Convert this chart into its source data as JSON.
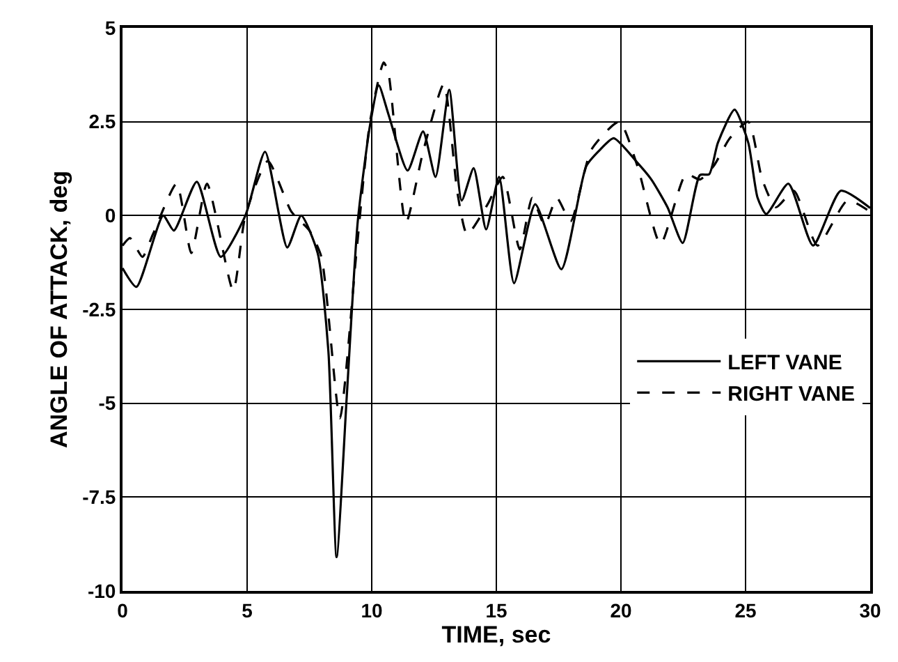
{
  "chart_data": {
    "type": "line",
    "xlabel": "TIME, sec",
    "ylabel": "ANGLE OF ATTACK, deg",
    "xlim": [
      0,
      30
    ],
    "xticks": [
      0,
      5,
      10,
      15,
      20,
      25,
      30
    ],
    "ylim": [
      -10,
      5
    ],
    "yticks": [
      -10,
      -7.5,
      -5,
      -2.5,
      0,
      2.5,
      5
    ],
    "grid": true,
    "legend": "right",
    "marker": "none",
    "series": [
      {
        "name": "LEFT VANE",
        "color": "#000000",
        "line_style": "solid",
        "x": [
          0,
          0.56,
          1.63,
          2.06,
          2.98,
          3.94,
          4.93,
          5.72,
          6.61,
          7.17,
          7.83,
          8.26,
          8.59,
          9.0,
          9.44,
          9.93,
          10.28,
          10.67,
          11.44,
          12.06,
          12.56,
          13.11,
          13.61,
          14.09,
          14.59,
          15.11,
          15.71,
          16.56,
          17.61,
          18.61,
          19.17,
          19.71,
          20.67,
          21.22,
          21.87,
          22.48,
          23.17,
          23.54,
          23.89,
          24.56,
          25.11,
          25.48,
          25.83,
          26.72,
          27.71,
          28.82,
          30
        ],
        "values": [
          -1.4,
          -1.9,
          0,
          -0.4,
          0.9,
          -1.1,
          0,
          1.7,
          -0.85,
          0,
          -1.0,
          -3.6,
          -9.1,
          -4.8,
          -0.15,
          2.4,
          3.47,
          2.7,
          1.2,
          2.24,
          1.03,
          3.35,
          0.4,
          1.26,
          -0.37,
          1.03,
          -1.8,
          0.3,
          -1.43,
          1.32,
          1.76,
          2.06,
          1.4,
          0.96,
          0.22,
          -0.73,
          1.08,
          1.1,
          1.94,
          2.82,
          1.94,
          0.48,
          0.04,
          0.85,
          -0.8,
          0.66,
          0.2
        ]
      },
      {
        "name": "RIGHT VANE",
        "color": "#000000",
        "line_style": "dashed",
        "x": [
          0,
          0.3,
          0.8,
          1.22,
          2.17,
          2.76,
          3.39,
          4.44,
          4.93,
          5.83,
          6.78,
          7.5,
          7.98,
          8.72,
          9.37,
          9.93,
          10.48,
          10.67,
          11.37,
          12.06,
          12.89,
          13.44,
          13.83,
          14.65,
          15.26,
          15.94,
          16.44,
          16.94,
          17.43,
          17.98,
          18.82,
          19.93,
          20.67,
          21.59,
          22.61,
          23.17,
          23.72,
          24.37,
          25.11,
          25.67,
          26.22,
          26.94,
          27.89,
          29.09,
          30
        ],
        "values": [
          -0.8,
          -0.6,
          -1.1,
          -0.5,
          0.85,
          -1.0,
          0.85,
          -2.0,
          0,
          1.45,
          0.1,
          -0.4,
          -1.1,
          -5.4,
          -1.1,
          2.5,
          4.08,
          3.8,
          -0.2,
          1.7,
          3.5,
          0.6,
          -0.5,
          0.3,
          1.03,
          -0.9,
          0.47,
          -0.26,
          0.47,
          -0.15,
          1.76,
          2.5,
          1.3,
          -0.76,
          1.1,
          0.96,
          1.32,
          2.06,
          2.5,
          0.96,
          0.22,
          0.66,
          -0.8,
          0.4,
          0.1
        ]
      }
    ]
  }
}
